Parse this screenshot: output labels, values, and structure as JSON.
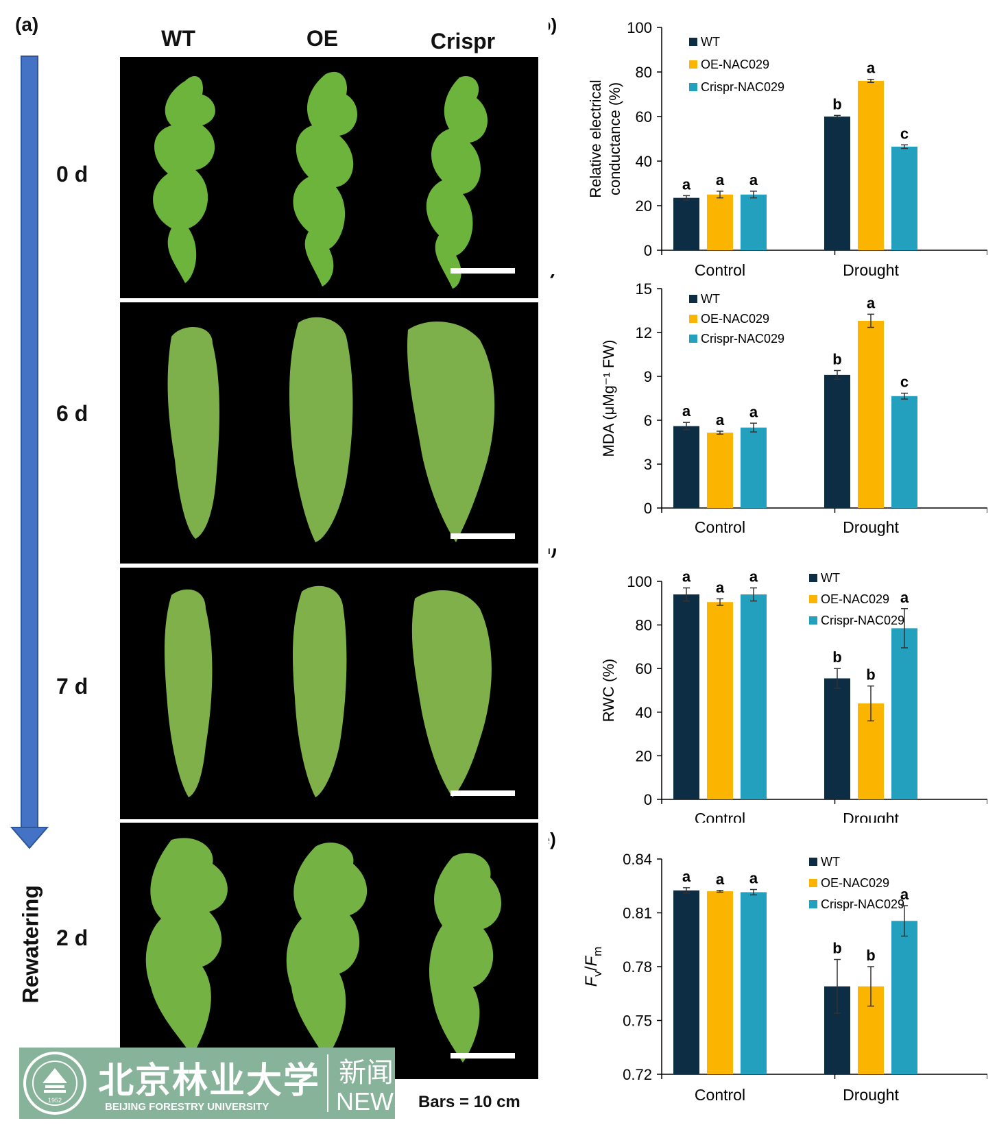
{
  "panel_a": {
    "label": "(a)",
    "columns": [
      "WT",
      "OE",
      "Crispr"
    ],
    "rows": [
      "0 d",
      "6 d",
      "7 d",
      "2 d"
    ],
    "rewatering": "Rewatering",
    "scale": "Bars = 10 cm"
  },
  "logo": {
    "chinese_name": "北京林业大学",
    "english_name": "BEIJING FORESTRY UNIVERSITY",
    "news_cn": "新闻",
    "news_en": "NEWS",
    "seal_text": "1952"
  },
  "colors": {
    "WT": "#0d2d45",
    "OE": "#fbb400",
    "Crispr": "#22a0be"
  },
  "chart_data": [
    {
      "id": "b",
      "label": "(b)",
      "type": "bar",
      "ylabel": "Relative electrical conductance (%)",
      "ylabel_lines": [
        "Relative electrical",
        "conductance (%)"
      ],
      "categories": [
        "Control",
        "Drought"
      ],
      "ylim": [
        0,
        100
      ],
      "ticks": [
        "0",
        "20",
        "40",
        "60",
        "80",
        "100"
      ],
      "legend": [
        "WT",
        "OE-NAC029",
        "Crispr-NAC029"
      ],
      "series": [
        {
          "name": "WT",
          "values": [
            23.5,
            60
          ],
          "errors": [
            1,
            0.5
          ],
          "letters": [
            "a",
            "b"
          ]
        },
        {
          "name": "OE-NAC029",
          "values": [
            25,
            76
          ],
          "errors": [
            1.5,
            0.7
          ],
          "letters": [
            "a",
            "a"
          ]
        },
        {
          "name": "Crispr-NAC029",
          "values": [
            25,
            46.5
          ],
          "errors": [
            1.5,
            0.8
          ],
          "letters": [
            "a",
            "c"
          ]
        }
      ]
    },
    {
      "id": "c",
      "label": "(c)",
      "type": "bar",
      "ylabel": "MDA (μMg⁻¹ FW)",
      "ylabel_lines": [
        "MDA (μMg⁻¹ FW)"
      ],
      "categories": [
        "Control",
        "Drought"
      ],
      "ylim": [
        0,
        15
      ],
      "ticks": [
        "0",
        "3",
        "6",
        "9",
        "12",
        "15"
      ],
      "legend": [
        "WT",
        "OE-NAC029",
        "Crispr-NAC029"
      ],
      "series": [
        {
          "name": "WT",
          "values": [
            5.6,
            9.1
          ],
          "errors": [
            0.25,
            0.3
          ],
          "letters": [
            "a",
            "b"
          ]
        },
        {
          "name": "OE-NAC029",
          "values": [
            5.15,
            12.8
          ],
          "errors": [
            0.1,
            0.45
          ],
          "letters": [
            "a",
            "a"
          ]
        },
        {
          "name": "Crispr-NAC029",
          "values": [
            5.5,
            7.65
          ],
          "errors": [
            0.3,
            0.2
          ],
          "letters": [
            "a",
            "c"
          ]
        }
      ]
    },
    {
      "id": "d",
      "label": "(d)",
      "type": "bar",
      "ylabel": "RWC (%)",
      "ylabel_lines": [
        "RWC (%)"
      ],
      "categories": [
        "Control",
        "Drought"
      ],
      "ylim": [
        0,
        100
      ],
      "ticks": [
        "0",
        "20",
        "40",
        "60",
        "80",
        "100"
      ],
      "legend": [
        "WT",
        "OE-NAC029",
        "Crispr-NAC029"
      ],
      "series": [
        {
          "name": "WT",
          "values": [
            94,
            55.5
          ],
          "errors": [
            3,
            4.5
          ],
          "letters": [
            "a",
            "b"
          ]
        },
        {
          "name": "OE-NAC029",
          "values": [
            90.5,
            44
          ],
          "errors": [
            1.5,
            8
          ],
          "letters": [
            "a",
            "b"
          ]
        },
        {
          "name": "Crispr-NAC029",
          "values": [
            94,
            78.5
          ],
          "errors": [
            3,
            9
          ],
          "letters": [
            "a",
            "a"
          ]
        }
      ]
    },
    {
      "id": "e",
      "label": "(e)",
      "type": "bar",
      "ylabel": "Fv/Fm",
      "ylabel_parts": [
        "F",
        "v",
        "/",
        "F",
        "m"
      ],
      "categories": [
        "Control",
        "Drought"
      ],
      "ylim": [
        0.72,
        0.84
      ],
      "ticks": [
        "0.72",
        "0.75",
        "0.78",
        "0.81",
        "0.84"
      ],
      "legend": [
        "WT",
        "OE-NAC029",
        "Crispr-NAC029"
      ],
      "series": [
        {
          "name": "WT",
          "values": [
            0.8225,
            0.769
          ],
          "errors": [
            0.0015,
            0.015
          ],
          "letters": [
            "a",
            "b"
          ]
        },
        {
          "name": "OE-NAC029",
          "values": [
            0.822,
            0.769
          ],
          "errors": [
            0.0005,
            0.011
          ],
          "letters": [
            "a",
            "b"
          ]
        },
        {
          "name": "Crispr-NAC029",
          "values": [
            0.8215,
            0.8055
          ],
          "errors": [
            0.0015,
            0.0085
          ],
          "letters": [
            "a",
            "a"
          ]
        }
      ]
    }
  ]
}
